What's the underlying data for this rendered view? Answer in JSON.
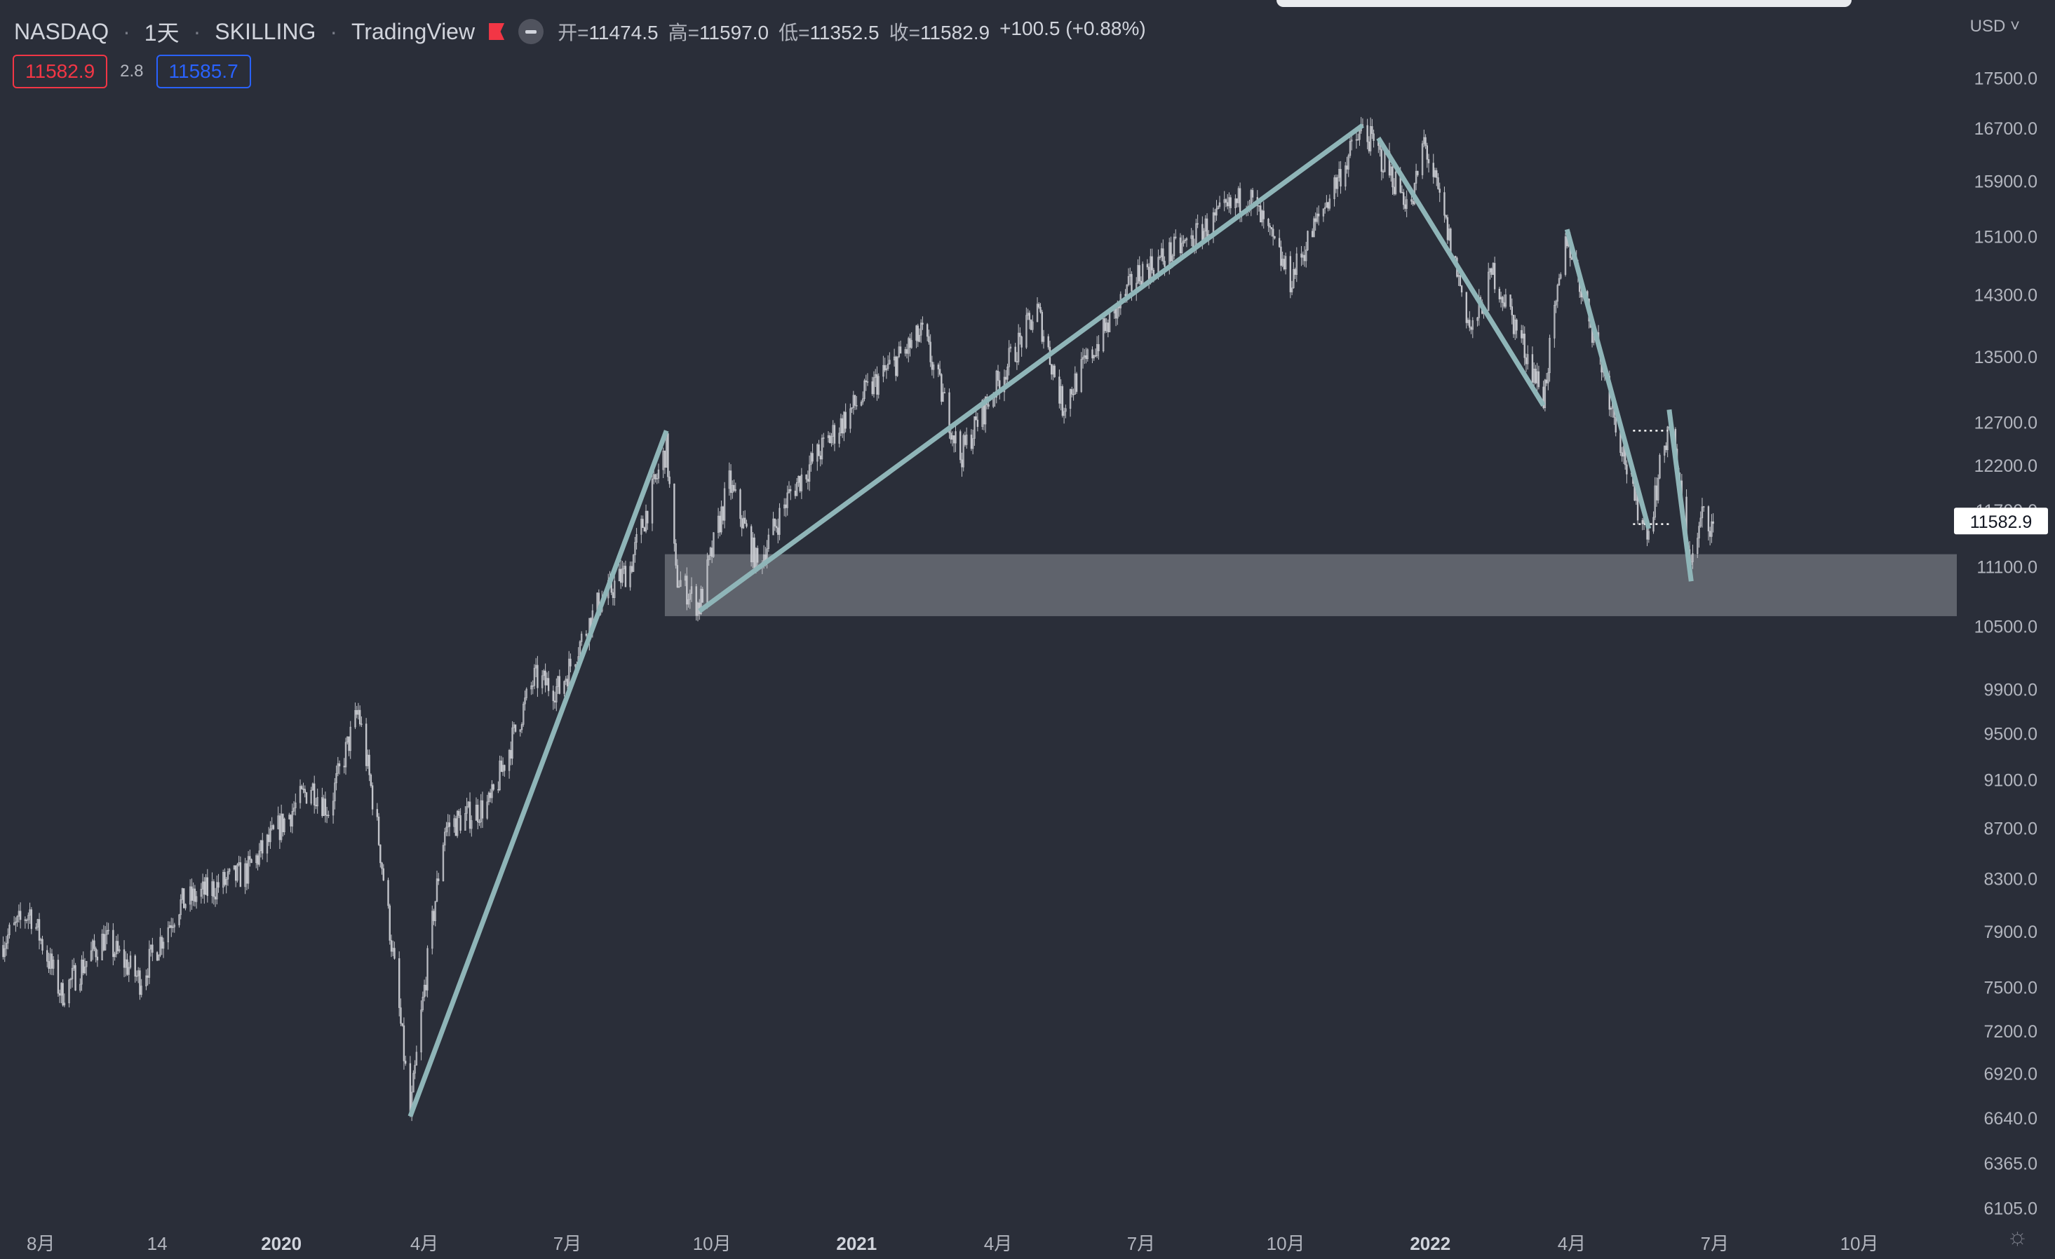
{
  "header": {
    "symbol": "NASDAQ",
    "interval": "1天",
    "broker": "SKILLING",
    "platform": "TradingView",
    "ohlc": {
      "open_label": "开=",
      "open": "11474.5",
      "high_label": "高=",
      "high": "11597.0",
      "low_label": "低=",
      "low": "11352.5",
      "close_label": "收=",
      "close": "11582.9",
      "change": "+100.5 (+0.88%)"
    },
    "bid": "11582.9",
    "spread": "2.8",
    "ask": "11585.7",
    "currency": "USD"
  },
  "colors": {
    "background": "#2a2e39",
    "candles": "#c4c6cc",
    "trendline": "#8fb5b8",
    "zone": "#62666f",
    "axis_text": "#b2b5be",
    "bid": "#f23645",
    "ask": "#2962ff"
  },
  "icons": {
    "flag": "flag-icon",
    "hide": "minus-circle-icon",
    "settings": "gear-icon"
  },
  "chart_data": {
    "type": "candlestick",
    "scale": "log",
    "y_ticks": [
      17500,
      16700,
      15900,
      15100,
      14300,
      13500,
      12700,
      12200,
      11700,
      11100,
      10500,
      9900,
      9500,
      9100,
      8700,
      8300,
      7900,
      7500,
      7200,
      6920,
      6640,
      6365,
      6105
    ],
    "y_range": [
      6000,
      18100
    ],
    "x_range": [
      "2019-07-06",
      "2022-12-02"
    ],
    "x_ticks": [
      {
        "label": "8月",
        "date": "2019-08-01",
        "bold": false
      },
      {
        "label": "14",
        "date": "2019-10-14",
        "bold": false
      },
      {
        "label": "2020",
        "date": "2020-01-01",
        "bold": true
      },
      {
        "label": "4月",
        "date": "2020-04-01",
        "bold": false
      },
      {
        "label": "7月",
        "date": "2020-07-01",
        "bold": false
      },
      {
        "label": "10月",
        "date": "2020-10-01",
        "bold": false
      },
      {
        "label": "2021",
        "date": "2021-01-01",
        "bold": true
      },
      {
        "label": "4月",
        "date": "2021-04-01",
        "bold": false
      },
      {
        "label": "7月",
        "date": "2021-07-01",
        "bold": false
      },
      {
        "label": "10月",
        "date": "2021-10-01",
        "bold": false
      },
      {
        "label": "2022",
        "date": "2022-01-01",
        "bold": true
      },
      {
        "label": "4月",
        "date": "2022-04-01",
        "bold": false
      },
      {
        "label": "7月",
        "date": "2022-07-01",
        "bold": false
      },
      {
        "label": "10月",
        "date": "2022-10-01",
        "bold": false
      }
    ],
    "last_price": "11582.9",
    "price_path": [
      [
        "2019-07-06",
        7800
      ],
      [
        "2019-07-25",
        8050
      ],
      [
        "2019-08-14",
        7450
      ],
      [
        "2019-09-10",
        7850
      ],
      [
        "2019-10-03",
        7550
      ],
      [
        "2019-10-28",
        8100
      ],
      [
        "2019-12-10",
        8350
      ],
      [
        "2020-01-20",
        9050
      ],
      [
        "2020-01-31",
        8850
      ],
      [
        "2020-02-19",
        9700
      ],
      [
        "2020-03-02",
        8700
      ],
      [
        "2020-03-23",
        6650
      ],
      [
        "2020-04-14",
        8700
      ],
      [
        "2020-05-13",
        8900
      ],
      [
        "2020-06-10",
        10000
      ],
      [
        "2020-06-26",
        9900
      ],
      [
        "2020-07-20",
        10700
      ],
      [
        "2020-08-10",
        11100
      ],
      [
        "2020-09-02",
        12400
      ],
      [
        "2020-09-08",
        11000
      ],
      [
        "2020-09-23",
        10700
      ],
      [
        "2020-10-12",
        12000
      ],
      [
        "2020-10-30",
        11100
      ],
      [
        "2020-11-20",
        11900
      ],
      [
        "2020-12-31",
        12900
      ],
      [
        "2021-02-12",
        13800
      ],
      [
        "2021-03-08",
        12300
      ],
      [
        "2021-04-26",
        14100
      ],
      [
        "2021-05-12",
        12900
      ],
      [
        "2021-06-30",
        14600
      ],
      [
        "2021-07-30",
        15000
      ],
      [
        "2021-09-07",
        15700
      ],
      [
        "2021-10-04",
        14500
      ],
      [
        "2021-11-19",
        16700
      ],
      [
        "2021-12-20",
        15500
      ],
      [
        "2021-12-28",
        16500
      ],
      [
        "2022-01-27",
        13800
      ],
      [
        "2022-02-10",
        14600
      ],
      [
        "2022-03-14",
        13000
      ],
      [
        "2022-03-29",
        15100
      ],
      [
        "2022-05-11",
        11800
      ],
      [
        "2022-05-20",
        11500
      ],
      [
        "2022-06-02",
        12700
      ],
      [
        "2022-06-16",
        11100
      ],
      [
        "2022-06-24",
        11700
      ],
      [
        "2022-06-30",
        11500
      ]
    ],
    "trendlines": [
      {
        "from": [
          "2020-03-23",
          6650
        ],
        "to": [
          "2020-09-02",
          12600
        ]
      },
      {
        "from": [
          "2020-09-23",
          10650
        ],
        "to": [
          "2021-11-19",
          16750
        ]
      },
      {
        "from": [
          "2021-11-29",
          16550
        ],
        "to": [
          "2022-03-14",
          12900
        ]
      },
      {
        "from": [
          "2022-03-29",
          15200
        ],
        "to": [
          "2022-05-20",
          11500
        ]
      },
      {
        "from": [
          "2022-06-02",
          12850
        ],
        "to": [
          "2022-06-16",
          10950
        ]
      }
    ],
    "zone": {
      "from": "2020-09-01",
      "to": "2022-12-02",
      "low": 10600,
      "high": 11230
    },
    "dotted_levels": [
      {
        "from": "2022-05-10",
        "to": "2022-06-01",
        "value": 12600
      },
      {
        "from": "2022-05-10",
        "to": "2022-06-03",
        "value": 11550
      }
    ]
  }
}
